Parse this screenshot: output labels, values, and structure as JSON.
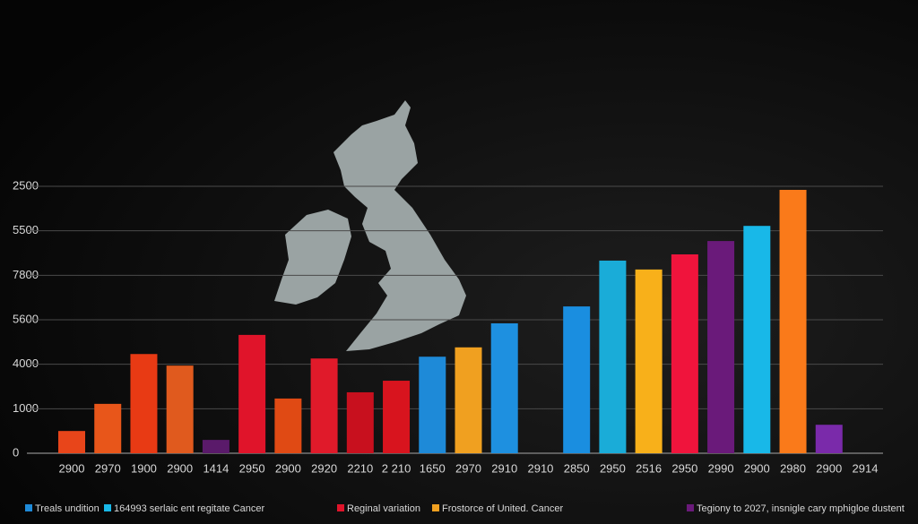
{
  "chart_data": {
    "type": "bar",
    "categories": [
      "2900",
      "2970",
      "1900",
      "2900",
      "1414",
      "2950",
      "2900",
      "2920",
      "2210",
      "2 210",
      "1650",
      "2970",
      "2910",
      "2910",
      "2850",
      "2950",
      "2516",
      "2950",
      "2990",
      "2900",
      "2980",
      "2900",
      "2914"
    ],
    "values": [
      0.5,
      1.11,
      2.23,
      1.97,
      0.3,
      2.66,
      1.23,
      2.13,
      1.37,
      1.63,
      2.17,
      2.38,
      2.92,
      null,
      3.3,
      4.33,
      4.13,
      4.47,
      4.77,
      5.11,
      5.92,
      0.64,
      null
    ],
    "colors": [
      "#e8451a",
      "#e8561a",
      "#e83a14",
      "#e05a1e",
      "#5a1a6a",
      "#e0142a",
      "#e04a14",
      "#e01a2a",
      "#c8101e",
      "#d8141e",
      "#1e8ad8",
      "#f0a020",
      "#1e90e0",
      null,
      "#1a8ee0",
      "#1aacd8",
      "#f8b01a",
      "#f0143c",
      "#6a1a7a",
      "#18b8e8",
      "#fa7a1a",
      "#7a2aaa",
      null
    ],
    "ylim": [
      0,
      6.2
    ],
    "yticks": [
      0,
      {
        "value": 1,
        "label": "1000"
      },
      {
        "value": 2,
        "label": "4000"
      },
      {
        "value": 3,
        "label": "5600"
      },
      {
        "value": 4,
        "label": "7800"
      },
      {
        "value": 5,
        "label": "5500"
      },
      {
        "value": 6,
        "label": "2500"
      }
    ],
    "grid": true,
    "legend": [
      {
        "name": "Treals undition",
        "color": "#1e8ad8"
      },
      {
        "name": "164993 serlaic ent regitate Cancer",
        "color": "#18b8e8"
      },
      {
        "name": "Reginal variation",
        "color": "#e0142a"
      },
      {
        "name": "Frostorce of United. Cancer",
        "color": "#f0a020"
      },
      {
        "name": "Tegiony to 2027, insnigle cary mphigloe dustent",
        "color": "#6a1a7a"
      }
    ]
  }
}
